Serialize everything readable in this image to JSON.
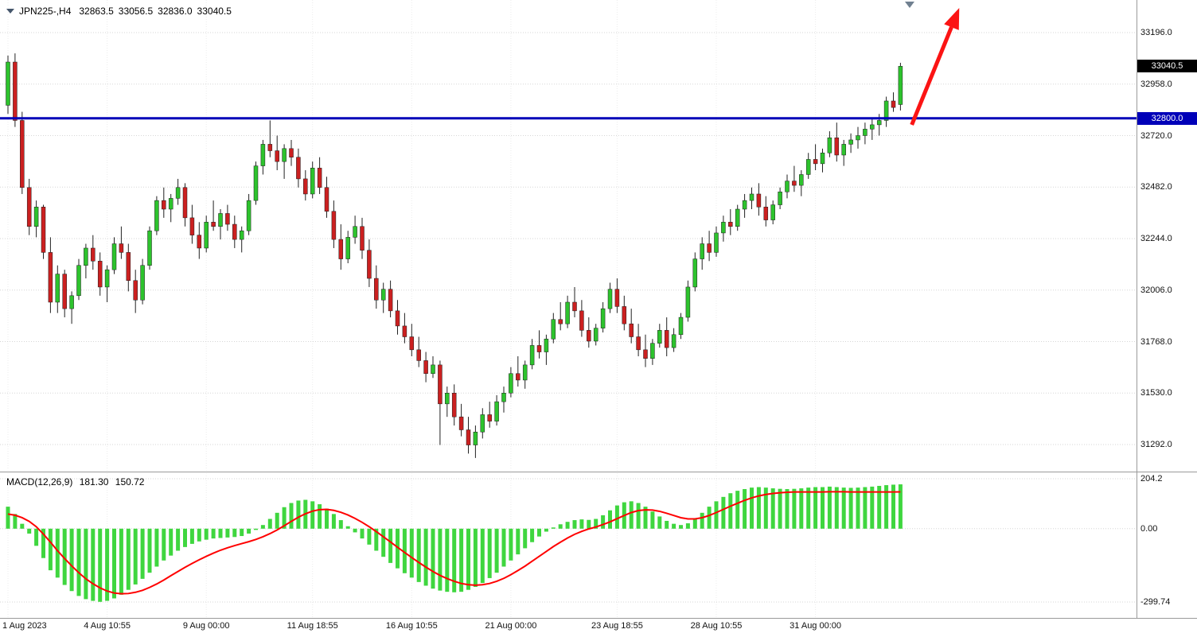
{
  "header": {
    "marker_icon": "triangle-down",
    "symbol": "JPN225-,H4",
    "open": "32863.5",
    "high": "33056.5",
    "low": "32836.0",
    "close": "33040.5"
  },
  "macd_header": {
    "label": "MACD(12,26,9)",
    "main_value": "181.30",
    "signal_value": "150.72"
  },
  "colors": {
    "bull": "#2dc32d",
    "bear": "#cb2020",
    "wick": "#222222",
    "hist": "#3fd63f",
    "signal_line": "#ff0000",
    "hline": "#0000b8",
    "arrow": "#fb1414",
    "price_badge_bg": "#000000",
    "hline_badge_bg": "#0000b8",
    "badge_text": "#ffffff",
    "grid": "#d6d6d6",
    "vgrid": "#ececec",
    "marker": "#708090",
    "separator": "#9a9a9a",
    "text": "#111111"
  },
  "chart_data": [
    {
      "type": "candlestick",
      "title": "JPN225- H4",
      "y_axis": {
        "ticks": [
          "33196.0",
          "32958.0",
          "32720.0",
          "32482.0",
          "32244.0",
          "32006.0",
          "31768.0",
          "31530.0",
          "31292.0"
        ],
        "ylim": [
          31170,
          33350
        ]
      },
      "x_axis": {
        "ticks": [
          {
            "bar": 0,
            "label": "1 Aug 2023"
          },
          {
            "bar": 14,
            "label": "4 Aug 10:55"
          },
          {
            "bar": 28,
            "label": "9 Aug 00:00"
          },
          {
            "bar": 43,
            "label": "11 Aug 18:55"
          },
          {
            "bar": 57,
            "label": "16 Aug 10:55"
          },
          {
            "bar": 71,
            "label": "21 Aug 00:00"
          },
          {
            "bar": 86,
            "label": "23 Aug 18:55"
          },
          {
            "bar": 100,
            "label": "28 Aug 10:55"
          },
          {
            "bar": 114,
            "label": "31 Aug 00:00"
          }
        ]
      },
      "current_price": {
        "value": 33040.5,
        "label": "33040.5"
      },
      "hline": {
        "value": 32800.0,
        "label": "32800.0"
      },
      "arrow": {
        "from_bar": 127.6,
        "from_price": 32770,
        "to_bar": 134.3,
        "to_price": 33310
      },
      "top_marker": {
        "bar": 127.3
      },
      "candles": [
        [
          32860,
          33090,
          32820,
          33060
        ],
        [
          33060,
          33100,
          32760,
          32790
        ],
        [
          32790,
          32830,
          32450,
          32480
        ],
        [
          32480,
          32520,
          32260,
          32300
        ],
        [
          32300,
          32420,
          32250,
          32390
        ],
        [
          32390,
          32400,
          32150,
          32180
        ],
        [
          32180,
          32250,
          31900,
          31950
        ],
        [
          31950,
          32120,
          31900,
          32080
        ],
        [
          32080,
          32100,
          31880,
          31920
        ],
        [
          31920,
          32000,
          31850,
          31980
        ],
        [
          31980,
          32150,
          31960,
          32120
        ],
        [
          32120,
          32220,
          32060,
          32200
        ],
        [
          32200,
          32260,
          32100,
          32140
        ],
        [
          32140,
          32180,
          31980,
          32020
        ],
        [
          32020,
          32120,
          31950,
          32100
        ],
        [
          32100,
          32250,
          32080,
          32220
        ],
        [
          32220,
          32300,
          32150,
          32180
        ],
        [
          32180,
          32220,
          32000,
          32050
        ],
        [
          32050,
          32100,
          31900,
          31960
        ],
        [
          31960,
          32150,
          31940,
          32120
        ],
        [
          32120,
          32300,
          32100,
          32280
        ],
        [
          32280,
          32440,
          32260,
          32420
        ],
        [
          32420,
          32480,
          32340,
          32380
        ],
        [
          32380,
          32450,
          32320,
          32430
        ],
        [
          32430,
          32520,
          32400,
          32480
        ],
        [
          32480,
          32500,
          32300,
          32340
        ],
        [
          32340,
          32400,
          32220,
          32260
        ],
        [
          32260,
          32320,
          32150,
          32200
        ],
        [
          32200,
          32350,
          32180,
          32320
        ],
        [
          32320,
          32420,
          32280,
          32300
        ],
        [
          32300,
          32380,
          32240,
          32360
        ],
        [
          32360,
          32400,
          32280,
          32310
        ],
        [
          32310,
          32350,
          32200,
          32240
        ],
        [
          32240,
          32300,
          32180,
          32280
        ],
        [
          32280,
          32450,
          32260,
          32420
        ],
        [
          32420,
          32600,
          32400,
          32580
        ],
        [
          32580,
          32700,
          32540,
          32680
        ],
        [
          32680,
          32790,
          32620,
          32650
        ],
        [
          32650,
          32720,
          32560,
          32600
        ],
        [
          32600,
          32680,
          32520,
          32660
        ],
        [
          32660,
          32700,
          32580,
          32620
        ],
        [
          32620,
          32660,
          32480,
          32520
        ],
        [
          32520,
          32560,
          32420,
          32450
        ],
        [
          32450,
          32600,
          32430,
          32570
        ],
        [
          32570,
          32620,
          32450,
          32480
        ],
        [
          32480,
          32530,
          32340,
          32370
        ],
        [
          32370,
          32420,
          32200,
          32240
        ],
        [
          32240,
          32310,
          32100,
          32150
        ],
        [
          32150,
          32280,
          32130,
          32250
        ],
        [
          32250,
          32350,
          32220,
          32300
        ],
        [
          32300,
          32340,
          32150,
          32190
        ],
        [
          32190,
          32240,
          32020,
          32060
        ],
        [
          32060,
          32120,
          31920,
          31960
        ],
        [
          31960,
          32040,
          31900,
          32010
        ],
        [
          32010,
          32050,
          31880,
          31910
        ],
        [
          31910,
          31960,
          31800,
          31840
        ],
        [
          31840,
          31900,
          31760,
          31790
        ],
        [
          31790,
          31850,
          31700,
          31730
        ],
        [
          31730,
          31790,
          31650,
          31680
        ],
        [
          31680,
          31720,
          31580,
          31620
        ],
        [
          31620,
          31700,
          31600,
          31660
        ],
        [
          31660,
          31680,
          31290,
          31480
        ],
        [
          31480,
          31560,
          31420,
          31530
        ],
        [
          31530,
          31570,
          31380,
          31420
        ],
        [
          31420,
          31480,
          31330,
          31360
        ],
        [
          31360,
          31420,
          31250,
          31290
        ],
        [
          31290,
          31380,
          31230,
          31350
        ],
        [
          31350,
          31460,
          31320,
          31430
        ],
        [
          31430,
          31490,
          31370,
          31400
        ],
        [
          31400,
          31520,
          31380,
          31490
        ],
        [
          31490,
          31560,
          31440,
          31530
        ],
        [
          31530,
          31650,
          31510,
          31620
        ],
        [
          31620,
          31700,
          31560,
          31590
        ],
        [
          31590,
          31680,
          31550,
          31660
        ],
        [
          31660,
          31780,
          31640,
          31750
        ],
        [
          31750,
          31820,
          31690,
          31720
        ],
        [
          31720,
          31800,
          31660,
          31780
        ],
        [
          31780,
          31900,
          31760,
          31870
        ],
        [
          31870,
          31950,
          31820,
          31850
        ],
        [
          31850,
          31980,
          31830,
          31950
        ],
        [
          31950,
          32020,
          31880,
          31910
        ],
        [
          31910,
          31960,
          31790,
          31820
        ],
        [
          31820,
          31880,
          31740,
          31770
        ],
        [
          31770,
          31850,
          31750,
          31830
        ],
        [
          31830,
          31950,
          31810,
          31920
        ],
        [
          31920,
          32040,
          31900,
          32010
        ],
        [
          32010,
          32060,
          31900,
          31930
        ],
        [
          31930,
          31980,
          31820,
          31850
        ],
        [
          31850,
          31920,
          31760,
          31790
        ],
        [
          31790,
          31850,
          31700,
          31730
        ],
        [
          31730,
          31800,
          31650,
          31690
        ],
        [
          31690,
          31780,
          31660,
          31760
        ],
        [
          31760,
          31850,
          31740,
          31820
        ],
        [
          31820,
          31880,
          31700,
          31740
        ],
        [
          31740,
          31830,
          31720,
          31800
        ],
        [
          31800,
          31900,
          31780,
          31880
        ],
        [
          31880,
          32050,
          31860,
          32020
        ],
        [
          32020,
          32180,
          32000,
          32150
        ],
        [
          32150,
          32250,
          32100,
          32220
        ],
        [
          32220,
          32280,
          32140,
          32180
        ],
        [
          32180,
          32300,
          32160,
          32270
        ],
        [
          32270,
          32350,
          32230,
          32320
        ],
        [
          32320,
          32380,
          32260,
          32300
        ],
        [
          32300,
          32400,
          32280,
          32380
        ],
        [
          32380,
          32450,
          32340,
          32420
        ],
        [
          32420,
          32480,
          32380,
          32450
        ],
        [
          32450,
          32500,
          32350,
          32390
        ],
        [
          32390,
          32440,
          32300,
          32330
        ],
        [
          32330,
          32420,
          32310,
          32400
        ],
        [
          32400,
          32480,
          32380,
          32460
        ],
        [
          32460,
          32540,
          32430,
          32510
        ],
        [
          32510,
          32580,
          32460,
          32490
        ],
        [
          32490,
          32560,
          32440,
          32540
        ],
        [
          32540,
          32640,
          32520,
          32610
        ],
        [
          32610,
          32680,
          32560,
          32590
        ],
        [
          32590,
          32660,
          32550,
          32640
        ],
        [
          32640,
          32740,
          32620,
          32710
        ],
        [
          32710,
          32780,
          32600,
          32630
        ],
        [
          32630,
          32700,
          32580,
          32680
        ],
        [
          32680,
          32730,
          32640,
          32700
        ],
        [
          32700,
          32760,
          32660,
          32720
        ],
        [
          32720,
          32780,
          32680,
          32750
        ],
        [
          32750,
          32800,
          32700,
          32770
        ],
        [
          32770,
          32820,
          32720,
          32790
        ],
        [
          32790,
          32900,
          32760,
          32880
        ],
        [
          32880,
          32920,
          32830,
          32850
        ],
        [
          32863.5,
          33056.5,
          32836.0,
          33040.5
        ]
      ]
    },
    {
      "type": "bar",
      "label": "MACD(12,26,9)",
      "main_value": 181.3,
      "signal_value": 150.72,
      "y_axis": {
        "ticks": [
          "204.2",
          "0.00",
          "-299.74"
        ],
        "ylim": [
          -310,
          215
        ]
      },
      "histogram": [
        90,
        60,
        20,
        -20,
        -70,
        -120,
        -170,
        -200,
        -230,
        -255,
        -275,
        -288,
        -295,
        -299,
        -295,
        -285,
        -270,
        -250,
        -228,
        -205,
        -180,
        -155,
        -130,
        -110,
        -90,
        -75,
        -62,
        -52,
        -45,
        -40,
        -38,
        -36,
        -34,
        -30,
        -20,
        -5,
        15,
        40,
        65,
        88,
        105,
        115,
        118,
        112,
        100,
        82,
        60,
        35,
        10,
        -15,
        -40,
        -65,
        -90,
        -115,
        -140,
        -162,
        -182,
        -200,
        -218,
        -233,
        -245,
        -253,
        -258,
        -260,
        -258,
        -250,
        -238,
        -222,
        -202,
        -180,
        -155,
        -130,
        -105,
        -80,
        -55,
        -32,
        -12,
        5,
        18,
        28,
        35,
        38,
        36,
        40,
        55,
        75,
        95,
        108,
        112,
        105,
        90,
        70,
        50,
        32,
        20,
        15,
        22,
        40,
        65,
        90,
        112,
        130,
        145,
        155,
        162,
        168,
        170,
        168,
        165,
        163,
        162,
        163,
        165,
        168,
        170,
        170,
        172,
        170,
        168,
        167,
        168,
        170,
        172,
        175,
        178,
        180,
        181.3
      ],
      "signal": [
        60,
        55,
        45,
        30,
        8,
        -22,
        -55,
        -90,
        -122,
        -152,
        -180,
        -205,
        -225,
        -242,
        -255,
        -263,
        -266,
        -265,
        -260,
        -252,
        -240,
        -226,
        -210,
        -192,
        -175,
        -158,
        -142,
        -127,
        -113,
        -100,
        -88,
        -78,
        -69,
        -61,
        -53,
        -44,
        -33,
        -20,
        -5,
        12,
        30,
        47,
        61,
        72,
        78,
        79,
        75,
        67,
        56,
        42,
        26,
        8,
        -12,
        -33,
        -54,
        -76,
        -97,
        -118,
        -138,
        -157,
        -175,
        -191,
        -204,
        -215,
        -224,
        -229,
        -231,
        -229,
        -224,
        -215,
        -203,
        -188,
        -171,
        -153,
        -133,
        -113,
        -93,
        -73,
        -55,
        -38,
        -23,
        -11,
        -1,
        7,
        17,
        28,
        41,
        54,
        66,
        74,
        77,
        76,
        71,
        63,
        54,
        45,
        40,
        40,
        45,
        54,
        66,
        79,
        92,
        104,
        116,
        126,
        134,
        140,
        144,
        147,
        149,
        150,
        150,
        150,
        150,
        150,
        151,
        151,
        151,
        150,
        150,
        150,
        150,
        150,
        150,
        150,
        150.72
      ]
    }
  ]
}
